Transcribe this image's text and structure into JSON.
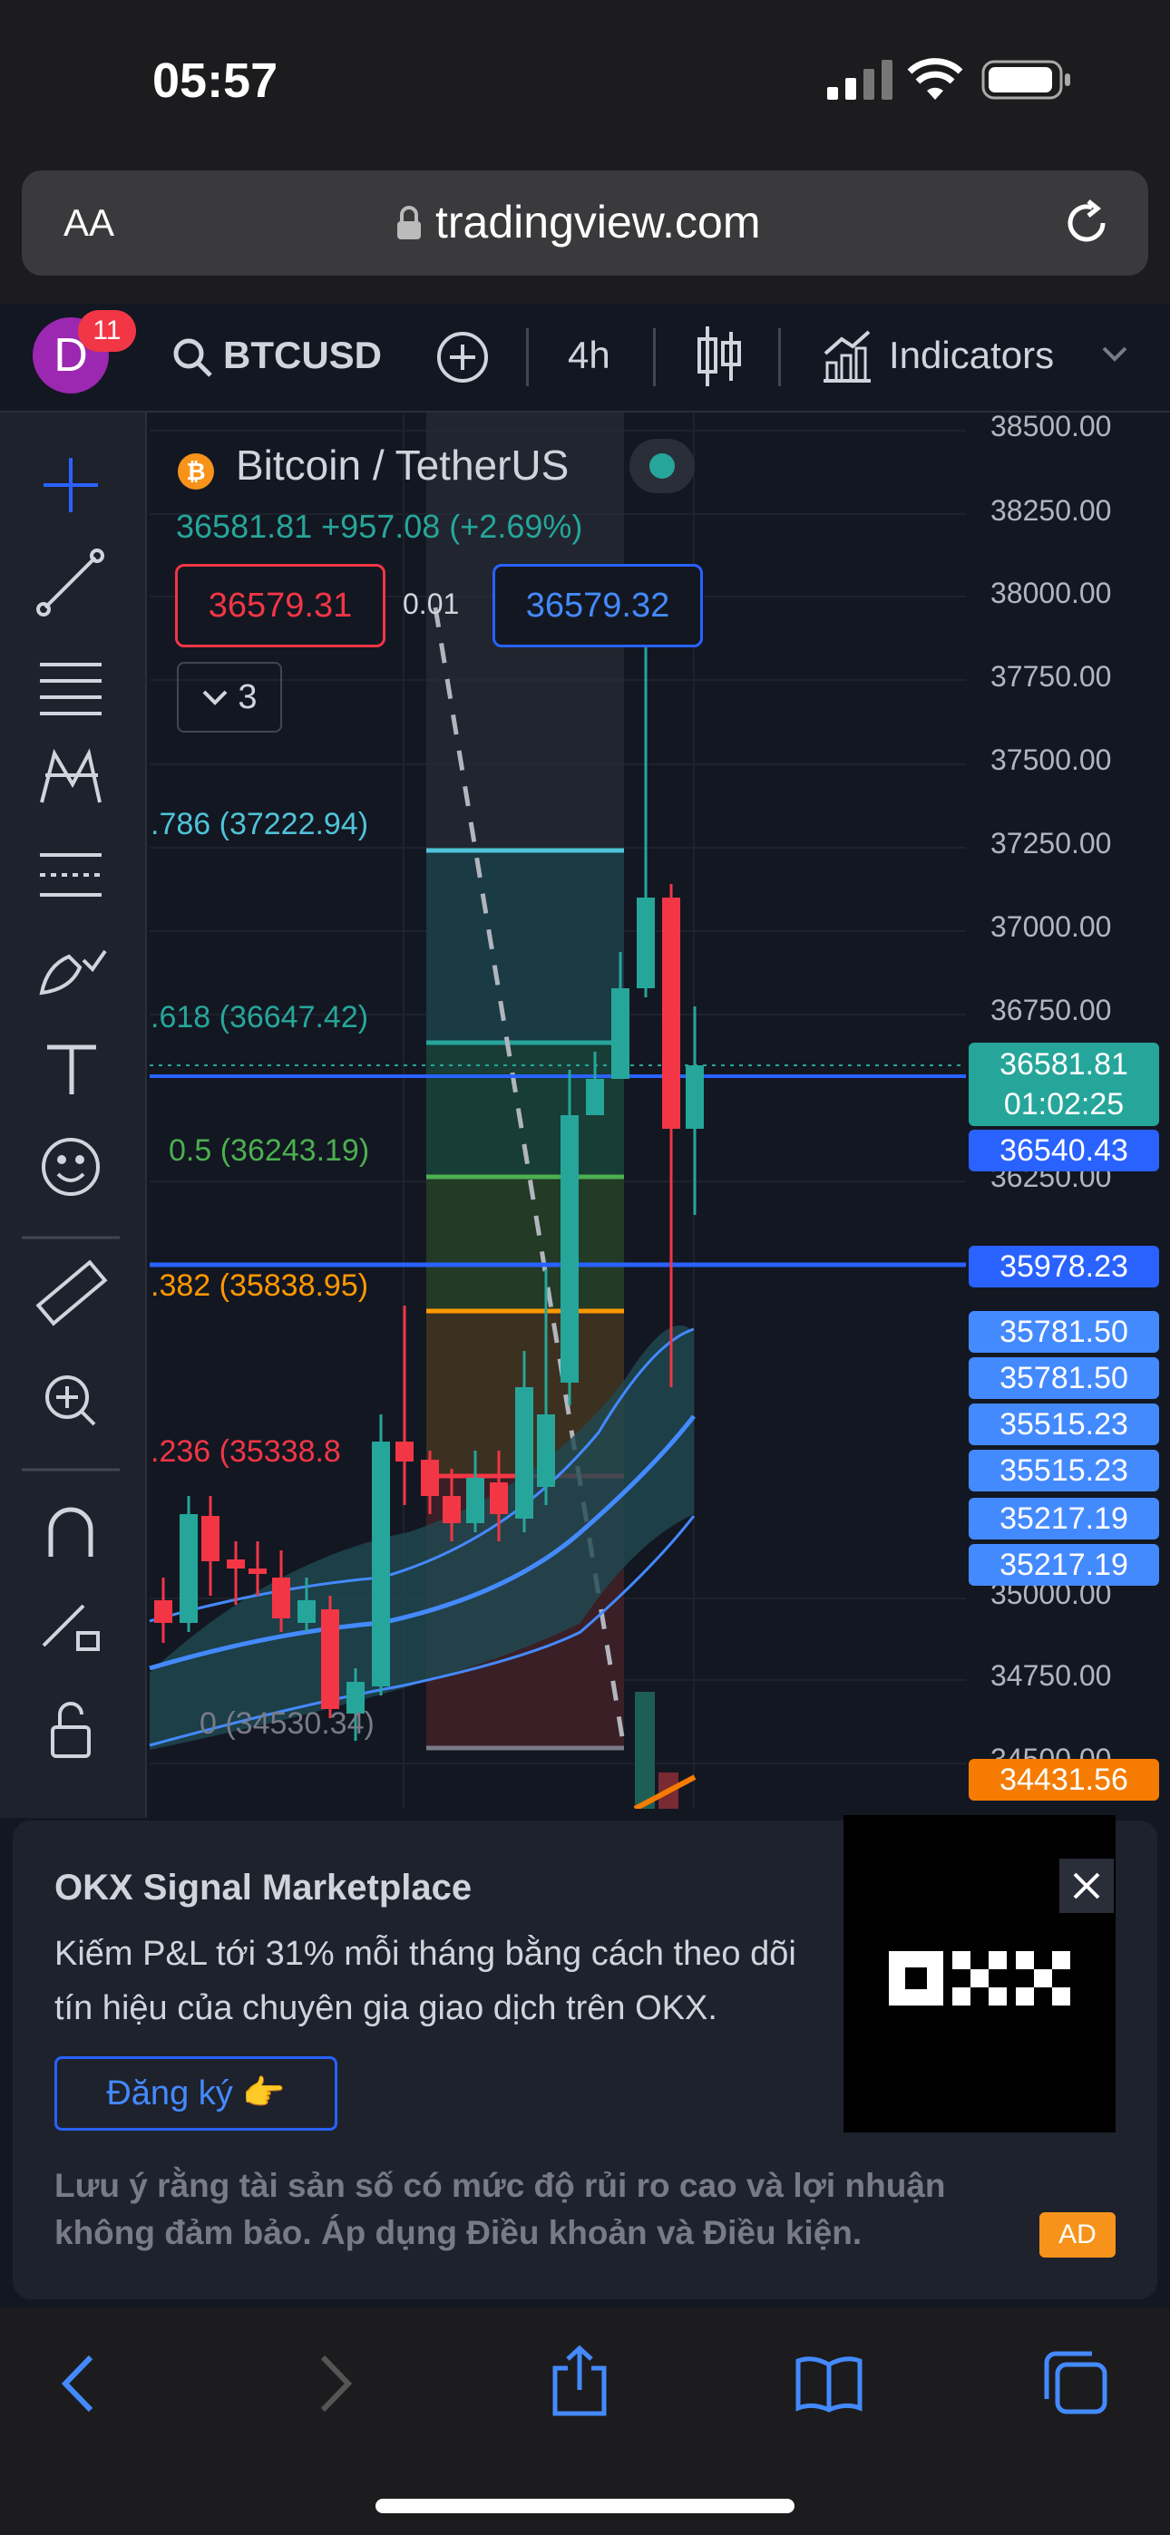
{
  "status": {
    "time": "05:57"
  },
  "browser": {
    "text_size": "AA",
    "url": "tradingview.com"
  },
  "toolbar": {
    "avatar_letter": "D",
    "badge": "11",
    "symbol": "BTCUSD",
    "interval": "4h",
    "indicators": "Indicators"
  },
  "legend": {
    "title": "Bitcoin / TetherUS",
    "last_line": "36581.81 +957.08 (+2.69%)",
    "bid": "36579.31",
    "spread": "0.01",
    "ask": "36579.32",
    "collapsed_count": "3"
  },
  "fib_levels": [
    {
      "label": ".786 (37222.94)",
      "color": "#4fc3d7"
    },
    {
      "label": ".618 (36647.42)",
      "color": "#26a69a"
    },
    {
      "label": "0.5 (36243.19)",
      "color": "#4caf50"
    },
    {
      "label": ".382 (35838.95)",
      "color": "#ff9800"
    },
    {
      "label": ".236 (35338.8",
      "color": "#f23645"
    },
    {
      "label": "0 (34530.34)",
      "color": "#787b86"
    }
  ],
  "axis_ticks": [
    "38500.00",
    "38250.00",
    "38000.00",
    "37750.00",
    "37500.00",
    "37250.00",
    "37000.00",
    "36750.00",
    "36250.00",
    "35000.00",
    "34750.00",
    "34500.00"
  ],
  "price_labels": {
    "current_price": "36581.81",
    "countdown": "01:02:25",
    "line_36540": "36540.43",
    "line_35978": "35978.23",
    "band": [
      "35781.50",
      "35781.50",
      "35515.23",
      "35515.23",
      "35217.19",
      "35217.19"
    ],
    "orange": "34431.56"
  },
  "ad": {
    "title": "OKX Signal Marketplace",
    "body_line1": "Kiếm P&L tới 31% mỗi tháng bằng cách theo dõi",
    "body_line2": "tín hiệu của chuyên gia giao dịch trên OKX.",
    "cta": "Đăng ký 👉",
    "disclaimer_line1": "Lưu ý rằng tài sản số có mức độ rủi ro cao và lợi nhuận",
    "disclaimer_line2": "không đảm bảo. Áp dụng Điều khoản và Điều kiện.",
    "badge": "AD",
    "logo": "OKX"
  },
  "colors": {
    "up": "#26a69a",
    "down": "#f23645",
    "blue_line": "#2962ff",
    "band_blue": "#448aff"
  }
}
